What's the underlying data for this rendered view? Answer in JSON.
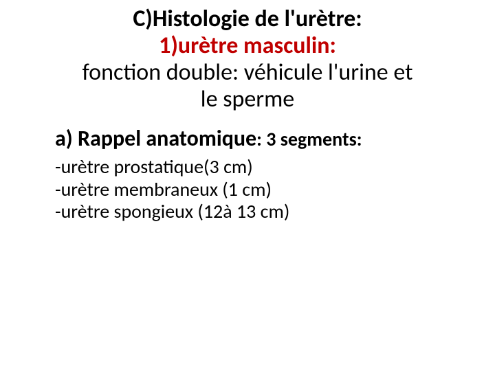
{
  "title": {
    "line1": "C)Histologie de l'urètre:",
    "line2": "1)urètre masculin:",
    "line3": "fonction double: véhicule l'urine et",
    "line4": "le sperme",
    "line1_color": "#000000",
    "line2_color": "#c00000",
    "line34_color": "#000000",
    "line1_fontsize": 34,
    "line2_fontsize": 34,
    "line34_fontsize": 34,
    "line1_weight": 700,
    "line2_weight": 700,
    "line34_weight": 400
  },
  "subtitle": {
    "prefix": "a) Rappel anatomique",
    "suffix": ": 3 segments:",
    "prefix_fontsize": 32,
    "suffix_fontsize": 28,
    "color": "#000000"
  },
  "segments": [
    {
      "text": "-urètre prostatique(3 cm)"
    },
    {
      "text": "-urètre membraneux (1 cm)"
    },
    {
      "text": "-urètre spongieux (12à 13 cm)"
    }
  ],
  "segments_fontsize": 28,
  "segments_color": "#000000",
  "background_color": "#ffffff"
}
